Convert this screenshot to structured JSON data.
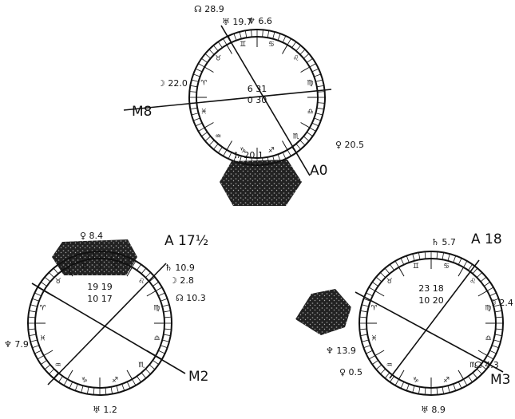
{
  "zodiac": [
    "♈",
    "♉",
    "♊",
    "♋",
    "♌",
    "♍",
    "♎",
    "♏",
    "♐",
    "♑",
    "♒",
    "♓"
  ],
  "wheels": [
    {
      "center": [
        "6 31",
        "0 30"
      ],
      "labels": [
        "☊ 28.9",
        "♅ 19.7",
        "♆ 6.6",
        "☽ 22.0",
        "♀ 20.5",
        "♄ 20.1"
      ],
      "axes": [
        "M8",
        "A0"
      ]
    },
    {
      "center": [
        "19 19",
        "10 17"
      ],
      "labels": [
        "♀ 8.4",
        "♄ 10.9",
        "☽ 2.8",
        "☊ 10.3",
        "♆ 7.9",
        "♅ 1.2"
      ],
      "axes": [
        "M2",
        "A 17½"
      ]
    },
    {
      "center": [
        "23 18",
        "10 20"
      ],
      "labels": [
        "♄ 5.7",
        "☽ 2.4",
        "♆ 13.9",
        "☊ 4.3",
        "♀ 0.5",
        "♅ 8.9"
      ],
      "axes": [
        "M3",
        "A 18"
      ]
    }
  ]
}
